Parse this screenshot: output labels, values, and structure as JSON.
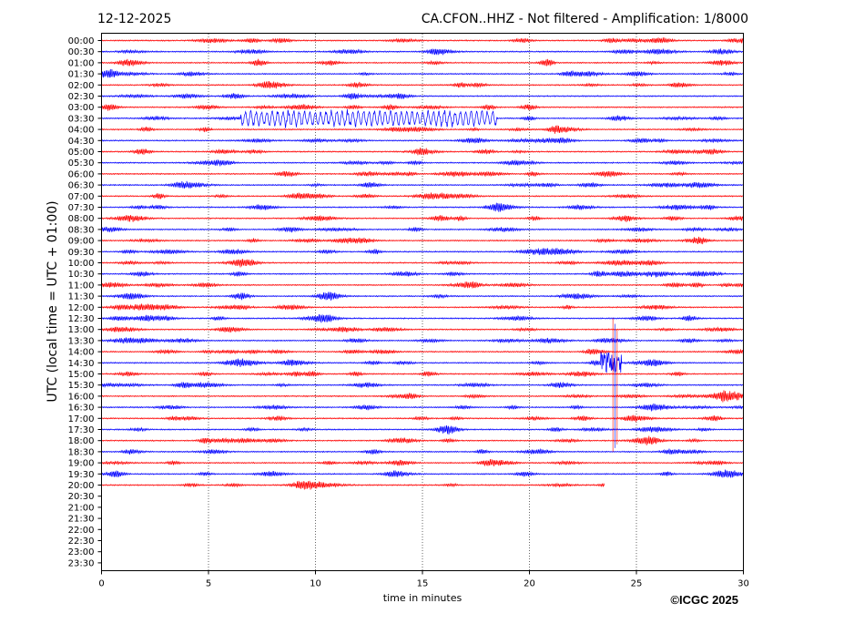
{
  "header": {
    "date": "12-12-2025",
    "title": "CA.CFON..HHZ - Not filtered - Amplification: 1/8000"
  },
  "footer": {
    "copyright": "©ICGC 2025"
  },
  "chart_data": {
    "type": "line",
    "title": "CA.CFON..HHZ - Not filtered - Amplification: 1/8000",
    "xlabel": "time in minutes",
    "ylabel": "UTC (local time = UTC + 01:00)",
    "xlim": [
      0,
      30
    ],
    "x_ticks": [
      "0",
      "5",
      "10",
      "15",
      "20",
      "25",
      "30"
    ],
    "y_ticks": [
      "00:00",
      "00:30",
      "01:00",
      "01:30",
      "02:00",
      "02:30",
      "03:00",
      "03:30",
      "04:00",
      "04:30",
      "05:00",
      "05:30",
      "06:00",
      "06:30",
      "07:00",
      "07:30",
      "08:00",
      "08:30",
      "09:00",
      "09:30",
      "10:00",
      "10:30",
      "11:00",
      "11:30",
      "12:00",
      "12:30",
      "13:00",
      "13:30",
      "14:00",
      "14:30",
      "15:00",
      "15:30",
      "16:00",
      "16:30",
      "17:00",
      "17:30",
      "18:00",
      "18:30",
      "19:00",
      "19:30",
      "20:00",
      "20:30",
      "21:00",
      "21:30",
      "22:00",
      "22:30",
      "23:00",
      "23:30"
    ],
    "trace_colors": [
      "#ff0000",
      "#0000ff"
    ],
    "recorded_traces": 41,
    "last_trace_end_minute": 23.5,
    "grid": "vertical dotted lines at x ticks",
    "events": [
      {
        "trace": "03:30",
        "x_start": 6.5,
        "x_end": 18.5,
        "amplitude": "large"
      },
      {
        "trace": "14:30",
        "x_start": 23.3,
        "x_end": 24.3,
        "amplitude": "very large"
      }
    ]
  }
}
